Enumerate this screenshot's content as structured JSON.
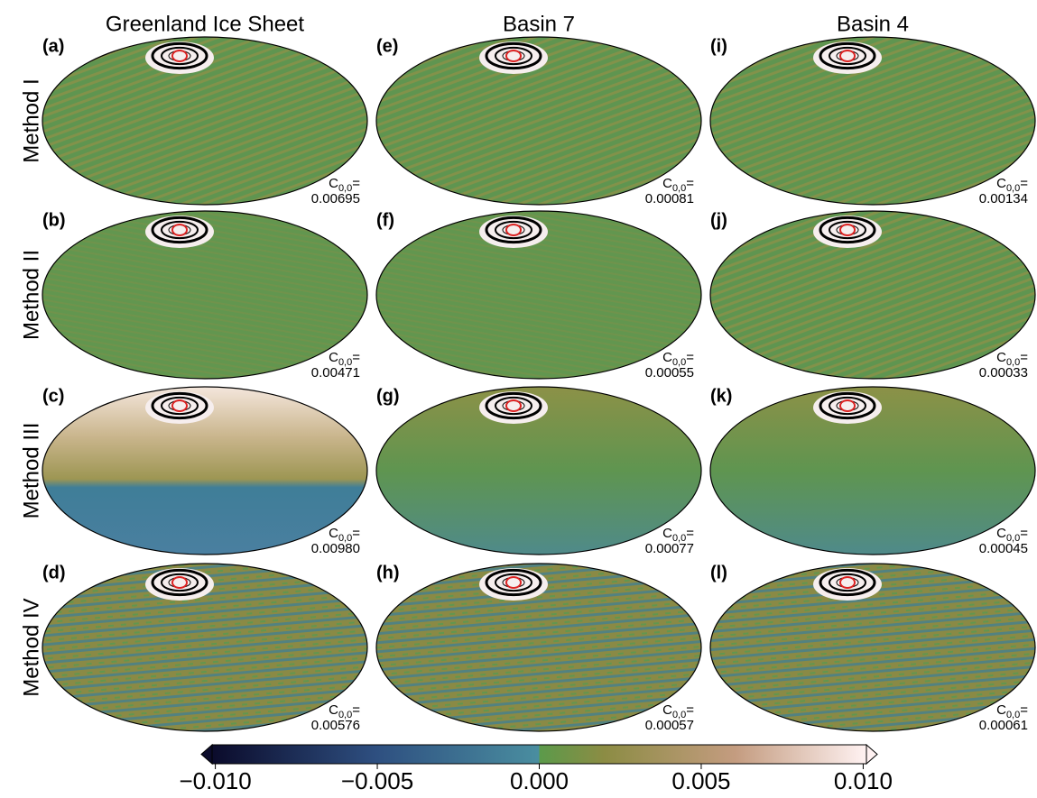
{
  "columns": [
    "Greenland Ice Sheet",
    "Basin 7",
    "Basin 4"
  ],
  "rows": [
    "Method I",
    "Method II",
    "Method III",
    "Method IV"
  ],
  "coefficient": {
    "symbol": "C",
    "subscript": "0,0",
    "sign": "="
  },
  "panels": [
    [
      {
        "label": "(a)",
        "value": "0.00695"
      },
      {
        "label": "(e)",
        "value": "0.00081"
      },
      {
        "label": "(i)",
        "value": "0.00134"
      }
    ],
    [
      {
        "label": "(b)",
        "value": "0.00471"
      },
      {
        "label": "(f)",
        "value": "0.00055"
      },
      {
        "label": "(j)",
        "value": "0.00033"
      }
    ],
    [
      {
        "label": "(c)",
        "value": "0.00980"
      },
      {
        "label": "(g)",
        "value": "0.00077"
      },
      {
        "label": "(k)",
        "value": "0.00045"
      }
    ],
    [
      {
        "label": "(d)",
        "value": "0.00576"
      },
      {
        "label": "(h)",
        "value": "0.00057"
      },
      {
        "label": "(l)",
        "value": "0.00061"
      }
    ]
  ],
  "colorbar": {
    "lim": [
      -0.0101,
      0.0101
    ],
    "ticks": [
      {
        "value": -0.01,
        "label": "−0.010"
      },
      {
        "value": -0.005,
        "label": "−0.005"
      },
      {
        "value": 0,
        "label": "0.000"
      },
      {
        "value": 0.005,
        "label": "0.005"
      },
      {
        "value": 0.01,
        "label": "0.010"
      }
    ]
  }
}
